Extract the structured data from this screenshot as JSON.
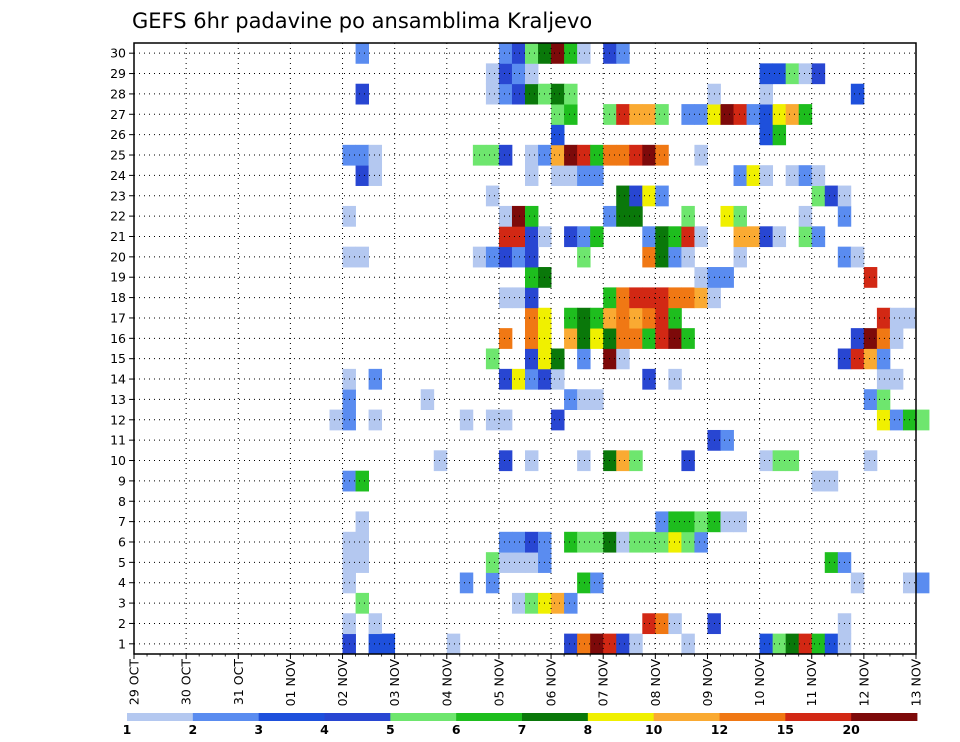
{
  "chart_data": {
    "type": "heatmap",
    "title": "GEFS 6hr padavine po ansamblima Kraljevo",
    "x_tick_labels": [
      "29 OCT",
      "30 OCT",
      "31 OCT",
      "01 NOV",
      "02 NOV",
      "03 NOV",
      "04 NOV",
      "05 NOV",
      "06 NOV",
      "07 NOV",
      "08 NOV",
      "09 NOV",
      "10 NOV",
      "11 NOV",
      "12 NOV",
      "13 NOV"
    ],
    "x_tick_day_index": [
      0,
      1,
      2,
      3,
      4,
      5,
      6,
      7,
      8,
      9,
      10,
      11,
      12,
      13,
      14,
      15
    ],
    "y_tick_labels": [
      "1",
      "2",
      "3",
      "4",
      "5",
      "6",
      "7",
      "8",
      "9",
      "10",
      "11",
      "12",
      "13",
      "14",
      "15",
      "16",
      "17",
      "18",
      "19",
      "20",
      "21",
      "22",
      "23",
      "24",
      "25",
      "26",
      "27",
      "28",
      "29",
      "30"
    ],
    "y_range": [
      0,
      30
    ],
    "x_range_days_from_29_oct": [
      0,
      15
    ],
    "grid": "dotted",
    "legend": {
      "position": "bottom",
      "labels": [
        "1",
        "2",
        "3",
        "4",
        "5",
        "6",
        "7",
        "8",
        "10",
        "12",
        "15",
        "20"
      ],
      "colors": [
        "#b4c8f0",
        "#5a8cf0",
        "#1e50dc",
        "#2846d2",
        "#6ee66e",
        "#1ebe1e",
        "#0a780a",
        "#f0f000",
        "#faaa32",
        "#f07814",
        "#d22814",
        "#7d0a0a"
      ]
    },
    "cells_note": "rows = ensemble member 1-30; each cell = [day offset from 29 OCT, level index 0-11 into legend colors]",
    "cells": {
      "1": [
        [
          4.0,
          3
        ],
        [
          4.5,
          2
        ],
        [
          4.75,
          2
        ],
        [
          6.0,
          0
        ],
        [
          8.25,
          3
        ],
        [
          8.5,
          9
        ],
        [
          8.75,
          11
        ],
        [
          9.0,
          10
        ],
        [
          9.25,
          3
        ],
        [
          9.5,
          0
        ],
        [
          10.5,
          0
        ],
        [
          12.0,
          2
        ],
        [
          12.25,
          4
        ],
        [
          12.5,
          6
        ],
        [
          12.75,
          10
        ],
        [
          13.0,
          5
        ],
        [
          13.25,
          2
        ],
        [
          13.5,
          0
        ]
      ],
      "2": [
        [
          4.0,
          0
        ],
        [
          4.5,
          0
        ],
        [
          9.75,
          10
        ],
        [
          10.0,
          9
        ],
        [
          10.25,
          0
        ],
        [
          11.0,
          3
        ],
        [
          13.5,
          0
        ]
      ],
      "3": [
        [
          4.25,
          4
        ],
        [
          7.25,
          0
        ],
        [
          7.5,
          4
        ],
        [
          7.75,
          7
        ],
        [
          8.0,
          8
        ],
        [
          8.25,
          1
        ]
      ],
      "4": [
        [
          4.0,
          0
        ],
        [
          6.25,
          1
        ],
        [
          6.75,
          1
        ],
        [
          8.5,
          5
        ],
        [
          8.75,
          1
        ],
        [
          13.75,
          0
        ],
        [
          14.75,
          0
        ],
        [
          15.0,
          1
        ]
      ],
      "5": [
        [
          4.0,
          0
        ],
        [
          4.25,
          0
        ],
        [
          6.75,
          4
        ],
        [
          7.0,
          0
        ],
        [
          7.25,
          0
        ],
        [
          7.5,
          0
        ],
        [
          7.75,
          1
        ],
        [
          13.25,
          5
        ],
        [
          13.5,
          1
        ]
      ],
      "6": [
        [
          4.0,
          0
        ],
        [
          4.25,
          0
        ],
        [
          7.0,
          1
        ],
        [
          7.25,
          1
        ],
        [
          7.5,
          3
        ],
        [
          7.75,
          1
        ],
        [
          8.25,
          5
        ],
        [
          8.5,
          4
        ],
        [
          8.75,
          4
        ],
        [
          9.0,
          6
        ],
        [
          9.25,
          0
        ],
        [
          9.5,
          4
        ],
        [
          9.75,
          4
        ],
        [
          10.0,
          4
        ],
        [
          10.25,
          7
        ],
        [
          10.5,
          4
        ],
        [
          10.75,
          1
        ]
      ],
      "7": [
        [
          4.25,
          0
        ],
        [
          10.0,
          1
        ],
        [
          10.25,
          5
        ],
        [
          10.5,
          5
        ],
        [
          10.75,
          4
        ],
        [
          11.0,
          5
        ],
        [
          11.25,
          0
        ],
        [
          11.5,
          0
        ]
      ],
      "9": [
        [
          4.0,
          1
        ],
        [
          4.25,
          5
        ],
        [
          13.0,
          0
        ],
        [
          13.25,
          0
        ]
      ],
      "10": [
        [
          5.75,
          0
        ],
        [
          7.0,
          3
        ],
        [
          7.5,
          0
        ],
        [
          8.5,
          0
        ],
        [
          9.0,
          6
        ],
        [
          9.25,
          8
        ],
        [
          9.5,
          4
        ],
        [
          10.5,
          3
        ],
        [
          12.0,
          0
        ],
        [
          12.25,
          4
        ],
        [
          12.5,
          4
        ],
        [
          14.0,
          0
        ]
      ],
      "11": [
        [
          11.0,
          3
        ],
        [
          11.25,
          1
        ]
      ],
      "12": [
        [
          3.75,
          0
        ],
        [
          4.0,
          1
        ],
        [
          4.5,
          0
        ],
        [
          6.25,
          0
        ],
        [
          6.75,
          0
        ],
        [
          7.0,
          0
        ],
        [
          8.0,
          3
        ],
        [
          14.25,
          7
        ],
        [
          14.5,
          1
        ],
        [
          14.75,
          5
        ],
        [
          15.0,
          4
        ]
      ],
      "13": [
        [
          4.0,
          1
        ],
        [
          5.5,
          0
        ],
        [
          8.25,
          1
        ],
        [
          8.5,
          0
        ],
        [
          8.75,
          0
        ],
        [
          14.0,
          1
        ],
        [
          14.25,
          4
        ]
      ],
      "14": [
        [
          4.0,
          0
        ],
        [
          4.5,
          1
        ],
        [
          7.0,
          3
        ],
        [
          7.25,
          7
        ],
        [
          7.5,
          1
        ],
        [
          7.75,
          3
        ],
        [
          8.0,
          0
        ],
        [
          9.75,
          3
        ],
        [
          10.25,
          0
        ],
        [
          14.25,
          0
        ],
        [
          14.5,
          0
        ]
      ],
      "15": [
        [
          6.75,
          4
        ],
        [
          7.5,
          3
        ],
        [
          7.75,
          7
        ],
        [
          8.0,
          6
        ],
        [
          8.5,
          1
        ],
        [
          9.0,
          11
        ],
        [
          9.25,
          0
        ],
        [
          13.5,
          3
        ],
        [
          13.75,
          10
        ],
        [
          14.0,
          8
        ],
        [
          14.25,
          1
        ]
      ],
      "16": [
        [
          7.0,
          9
        ],
        [
          7.5,
          9
        ],
        [
          7.75,
          7
        ],
        [
          8.25,
          8
        ],
        [
          8.5,
          6
        ],
        [
          8.75,
          7
        ],
        [
          9.0,
          6
        ],
        [
          9.25,
          9
        ],
        [
          9.5,
          9
        ],
        [
          9.75,
          5
        ],
        [
          10.0,
          10
        ],
        [
          10.25,
          11
        ],
        [
          10.5,
          5
        ],
        [
          13.75,
          3
        ],
        [
          14.0,
          11
        ],
        [
          14.25,
          9
        ],
        [
          14.5,
          0
        ]
      ],
      "17": [
        [
          7.5,
          9
        ],
        [
          7.75,
          7
        ],
        [
          8.25,
          5
        ],
        [
          8.5,
          6
        ],
        [
          8.75,
          5
        ],
        [
          9.0,
          8
        ],
        [
          9.25,
          9
        ],
        [
          9.5,
          8
        ],
        [
          9.75,
          9
        ],
        [
          10.0,
          10
        ],
        [
          10.25,
          5
        ],
        [
          14.25,
          10
        ],
        [
          14.5,
          0
        ],
        [
          14.75,
          0
        ]
      ],
      "18": [
        [
          7.0,
          0
        ],
        [
          7.25,
          0
        ],
        [
          7.5,
          3
        ],
        [
          9.0,
          5
        ],
        [
          9.25,
          9
        ],
        [
          9.5,
          10
        ],
        [
          9.75,
          10
        ],
        [
          10.0,
          10
        ],
        [
          10.25,
          9
        ],
        [
          10.5,
          9
        ],
        [
          10.75,
          8
        ],
        [
          11.0,
          0
        ]
      ],
      "19": [
        [
          7.5,
          5
        ],
        [
          7.75,
          6
        ],
        [
          10.75,
          0
        ],
        [
          11.0,
          1
        ],
        [
          11.25,
          1
        ],
        [
          14.0,
          10
        ]
      ],
      "20": [
        [
          4.0,
          0
        ],
        [
          4.25,
          0
        ],
        [
          6.5,
          0
        ],
        [
          6.75,
          1
        ],
        [
          7.0,
          3
        ],
        [
          7.25,
          1
        ],
        [
          7.5,
          3
        ],
        [
          8.5,
          4
        ],
        [
          9.75,
          9
        ],
        [
          10.0,
          6
        ],
        [
          10.25,
          1
        ],
        [
          10.5,
          0
        ],
        [
          11.5,
          0
        ],
        [
          13.5,
          1
        ],
        [
          13.75,
          0
        ]
      ],
      "21": [
        [
          7.0,
          10
        ],
        [
          7.25,
          10
        ],
        [
          7.5,
          3
        ],
        [
          7.75,
          0
        ],
        [
          8.25,
          3
        ],
        [
          8.5,
          1
        ],
        [
          8.75,
          5
        ],
        [
          9.75,
          1
        ],
        [
          10.0,
          6
        ],
        [
          10.25,
          5
        ],
        [
          10.5,
          10
        ],
        [
          10.75,
          0
        ],
        [
          11.5,
          8
        ],
        [
          11.75,
          8
        ],
        [
          12.0,
          3
        ],
        [
          12.25,
          0
        ],
        [
          12.75,
          4
        ],
        [
          13.0,
          1
        ]
      ],
      "22": [
        [
          4.0,
          0
        ],
        [
          7.0,
          0
        ],
        [
          7.25,
          11
        ],
        [
          7.5,
          5
        ],
        [
          9.0,
          1
        ],
        [
          9.25,
          6
        ],
        [
          9.5,
          6
        ],
        [
          10.5,
          4
        ],
        [
          11.25,
          7
        ],
        [
          11.5,
          4
        ],
        [
          12.75,
          0
        ],
        [
          13.5,
          1
        ]
      ],
      "23": [
        [
          6.75,
          0
        ],
        [
          9.25,
          6
        ],
        [
          9.5,
          3
        ],
        [
          9.75,
          7
        ],
        [
          10.0,
          1
        ],
        [
          13.0,
          4
        ],
        [
          13.25,
          3
        ],
        [
          13.5,
          0
        ]
      ],
      "24": [
        [
          4.25,
          3
        ],
        [
          4.5,
          0
        ],
        [
          7.5,
          0
        ],
        [
          8.0,
          0
        ],
        [
          8.25,
          0
        ],
        [
          8.5,
          1
        ],
        [
          8.75,
          1
        ],
        [
          11.5,
          1
        ],
        [
          11.75,
          7
        ],
        [
          12.0,
          0
        ],
        [
          12.5,
          0
        ],
        [
          12.75,
          1
        ],
        [
          13.0,
          0
        ]
      ],
      "25": [
        [
          4.0,
          1
        ],
        [
          4.25,
          1
        ],
        [
          4.5,
          0
        ],
        [
          6.5,
          4
        ],
        [
          6.75,
          4
        ],
        [
          7.0,
          3
        ],
        [
          7.5,
          0
        ],
        [
          7.75,
          1
        ],
        [
          8.0,
          8
        ],
        [
          8.25,
          11
        ],
        [
          8.5,
          10
        ],
        [
          8.75,
          5
        ],
        [
          9.0,
          9
        ],
        [
          9.25,
          9
        ],
        [
          9.5,
          10
        ],
        [
          9.75,
          11
        ],
        [
          10.0,
          9
        ],
        [
          10.75,
          0
        ]
      ],
      "26": [
        [
          8.0,
          2
        ],
        [
          12.0,
          2
        ],
        [
          12.25,
          5
        ]
      ],
      "27": [
        [
          8.0,
          4
        ],
        [
          8.25,
          5
        ],
        [
          9.0,
          4
        ],
        [
          9.25,
          10
        ],
        [
          9.5,
          8
        ],
        [
          9.75,
          8
        ],
        [
          10.0,
          4
        ],
        [
          10.5,
          1
        ],
        [
          10.75,
          1
        ],
        [
          11.0,
          7
        ],
        [
          11.25,
          11
        ],
        [
          11.5,
          10
        ],
        [
          11.75,
          1
        ],
        [
          12.0,
          2
        ],
        [
          12.25,
          7
        ],
        [
          12.5,
          8
        ],
        [
          12.75,
          5
        ]
      ],
      "28": [
        [
          4.25,
          3
        ],
        [
          6.75,
          0
        ],
        [
          7.0,
          1
        ],
        [
          7.25,
          3
        ],
        [
          7.5,
          6
        ],
        [
          7.75,
          4
        ],
        [
          8.0,
          6
        ],
        [
          8.25,
          4
        ],
        [
          11.0,
          0
        ],
        [
          12.0,
          0
        ],
        [
          13.75,
          2
        ]
      ],
      "29": [
        [
          6.75,
          0
        ],
        [
          7.0,
          3
        ],
        [
          7.25,
          1
        ],
        [
          7.5,
          0
        ],
        [
          12.0,
          2
        ],
        [
          12.25,
          2
        ],
        [
          12.5,
          4
        ],
        [
          12.75,
          0
        ],
        [
          13.0,
          3
        ]
      ],
      "30": [
        [
          4.25,
          1
        ],
        [
          7.0,
          1
        ],
        [
          7.25,
          3
        ],
        [
          7.5,
          4
        ],
        [
          7.75,
          6
        ],
        [
          8.0,
          11
        ],
        [
          8.25,
          5
        ],
        [
          8.5,
          0
        ],
        [
          9.0,
          3
        ],
        [
          9.25,
          1
        ]
      ]
    }
  }
}
